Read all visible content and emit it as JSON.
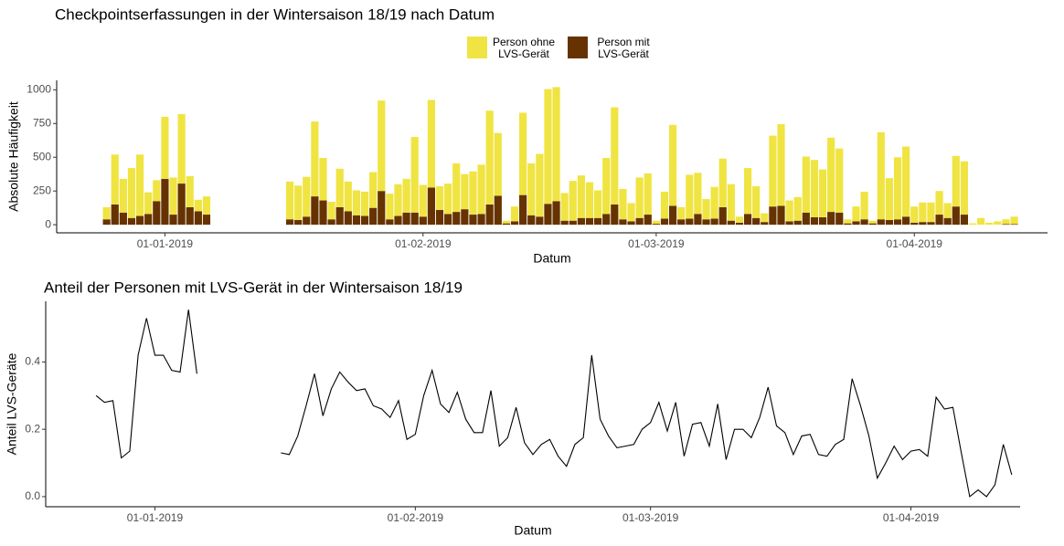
{
  "chart_data": [
    {
      "type": "bar",
      "stacked": true,
      "title": "Checkpointserfassungen in der Wintersaison 18/19 nach Datum",
      "xlabel": "Datum",
      "ylabel": "Absolute Häufigkeit",
      "legend": "top",
      "x": [
        "2018-12-25",
        "2018-12-26",
        "2018-12-27",
        "2018-12-28",
        "2018-12-29",
        "2018-12-30",
        "2018-12-31",
        "2019-01-01",
        "2019-01-02",
        "2019-01-03",
        "2019-01-04",
        "2019-01-05",
        "2019-01-06",
        "2019-01-07",
        "2019-01-08",
        "2019-01-09",
        "2019-01-10",
        "2019-01-11",
        "2019-01-12",
        "2019-01-13",
        "2019-01-14",
        "2019-01-15",
        "2019-01-16",
        "2019-01-17",
        "2019-01-18",
        "2019-01-19",
        "2019-01-20",
        "2019-01-21",
        "2019-01-22",
        "2019-01-23",
        "2019-01-24",
        "2019-01-25",
        "2019-01-26",
        "2019-01-27",
        "2019-01-28",
        "2019-01-29",
        "2019-01-30",
        "2019-01-31",
        "2019-02-01",
        "2019-02-02",
        "2019-02-03",
        "2019-02-04",
        "2019-02-05",
        "2019-02-06",
        "2019-02-07",
        "2019-02-08",
        "2019-02-09",
        "2019-02-10",
        "2019-02-11",
        "2019-02-12",
        "2019-02-13",
        "2019-02-14",
        "2019-02-15",
        "2019-02-16",
        "2019-02-17",
        "2019-02-18",
        "2019-02-19",
        "2019-02-20",
        "2019-02-21",
        "2019-02-22",
        "2019-02-23",
        "2019-02-24",
        "2019-02-25",
        "2019-02-26",
        "2019-02-27",
        "2019-02-28",
        "2019-03-01",
        "2019-03-02",
        "2019-03-03",
        "2019-03-04",
        "2019-03-05",
        "2019-03-06",
        "2019-03-07",
        "2019-03-08",
        "2019-03-09",
        "2019-03-10",
        "2019-03-11",
        "2019-03-12",
        "2019-03-13",
        "2019-03-14",
        "2019-03-15",
        "2019-03-16",
        "2019-03-17",
        "2019-03-18",
        "2019-03-19",
        "2019-03-20",
        "2019-03-21",
        "2019-03-22",
        "2019-03-23",
        "2019-03-24",
        "2019-03-25",
        "2019-03-26",
        "2019-03-27",
        "2019-03-28",
        "2019-03-29",
        "2019-03-30",
        "2019-03-31",
        "2019-04-01",
        "2019-04-02",
        "2019-04-03",
        "2019-04-04",
        "2019-04-05",
        "2019-04-06",
        "2019-04-07",
        "2019-04-08",
        "2019-04-09",
        "2019-04-10",
        "2019-04-11",
        "2019-04-12",
        "2019-04-13"
      ],
      "series": [
        {
          "name": "Person ohne LVS-Gerät",
          "color": "#f0e442",
          "values": [
            90,
            370,
            250,
            370,
            455,
            160,
            155,
            460,
            275,
            515,
            230,
            85,
            135,
            null,
            null,
            null,
            null,
            null,
            null,
            null,
            null,
            null,
            280,
            255,
            295,
            555,
            315,
            130,
            285,
            220,
            185,
            180,
            265,
            670,
            190,
            235,
            250,
            560,
            235,
            650,
            175,
            225,
            360,
            260,
            320,
            365,
            695,
            465,
            20,
            110,
            610,
            385,
            465,
            850,
            845,
            205,
            295,
            315,
            265,
            205,
            415,
            720,
            225,
            135,
            300,
            305,
            23,
            200,
            600,
            90,
            325,
            305,
            150,
            235,
            360,
            270,
            45,
            340,
            235,
            65,
            525,
            605,
            155,
            175,
            415,
            425,
            355,
            550,
            475,
            30,
            110,
            205,
            20,
            645,
            310,
            460,
            520,
            120,
            145,
            145,
            175,
            110,
            375,
            395,
            10,
            50,
            15,
            25,
            35,
            55
          ]
        },
        {
          "name": "Person mit LVS-Gerät",
          "color": "#663300",
          "values": [
            40,
            150,
            90,
            50,
            65,
            80,
            175,
            340,
            75,
            305,
            130,
            100,
            75,
            null,
            null,
            null,
            null,
            null,
            null,
            null,
            null,
            null,
            40,
            35,
            60,
            210,
            180,
            40,
            130,
            100,
            70,
            65,
            125,
            250,
            40,
            65,
            90,
            90,
            60,
            275,
            110,
            80,
            95,
            115,
            75,
            80,
            150,
            215,
            10,
            25,
            220,
            70,
            60,
            155,
            175,
            30,
            30,
            50,
            50,
            50,
            80,
            150,
            40,
            25,
            50,
            75,
            7,
            45,
            140,
            40,
            45,
            80,
            40,
            45,
            130,
            30,
            15,
            80,
            50,
            20,
            135,
            140,
            25,
            30,
            90,
            55,
            55,
            95,
            90,
            10,
            25,
            40,
            10,
            40,
            35,
            40,
            60,
            15,
            20,
            20,
            75,
            50,
            135,
            75,
            0,
            0,
            0,
            0,
            5,
            5
          ]
        }
      ],
      "xlim": [
        "2018-12-19",
        "2019-04-17"
      ],
      "xticks": [
        {
          "value": "2019-01-01",
          "label": "01-01-2019"
        },
        {
          "value": "2019-02-01",
          "label": "01-02-2019"
        },
        {
          "value": "2019-03-01",
          "label": "01-03-2019"
        },
        {
          "value": "2019-04-01",
          "label": "01-04-2019"
        }
      ],
      "ylim": [
        -60,
        1070
      ],
      "yticks": [
        0,
        250,
        500,
        750,
        1000
      ]
    },
    {
      "type": "line",
      "title": "Anteil der Personen mit LVS-Gerät in der Wintersaison 18/19",
      "xlabel": "Datum",
      "ylabel": "Anteil LVS-Geräte",
      "color": "#000000",
      "x": [
        "2018-12-25",
        "2018-12-26",
        "2018-12-27",
        "2018-12-28",
        "2018-12-29",
        "2018-12-30",
        "2018-12-31",
        "2019-01-01",
        "2019-01-02",
        "2019-01-03",
        "2019-01-04",
        "2019-01-05",
        "2019-01-06",
        "2019-01-07",
        "2019-01-08",
        "2019-01-09",
        "2019-01-10",
        "2019-01-11",
        "2019-01-12",
        "2019-01-13",
        "2019-01-14",
        "2019-01-15",
        "2019-01-16",
        "2019-01-17",
        "2019-01-18",
        "2019-01-19",
        "2019-01-20",
        "2019-01-21",
        "2019-01-22",
        "2019-01-23",
        "2019-01-24",
        "2019-01-25",
        "2019-01-26",
        "2019-01-27",
        "2019-01-28",
        "2019-01-29",
        "2019-01-30",
        "2019-01-31",
        "2019-02-01",
        "2019-02-02",
        "2019-02-03",
        "2019-02-04",
        "2019-02-05",
        "2019-02-06",
        "2019-02-07",
        "2019-02-08",
        "2019-02-09",
        "2019-02-10",
        "2019-02-11",
        "2019-02-12",
        "2019-02-13",
        "2019-02-14",
        "2019-02-15",
        "2019-02-16",
        "2019-02-17",
        "2019-02-18",
        "2019-02-19",
        "2019-02-20",
        "2019-02-21",
        "2019-02-22",
        "2019-02-23",
        "2019-02-24",
        "2019-02-25",
        "2019-02-26",
        "2019-02-27",
        "2019-02-28",
        "2019-03-01",
        "2019-03-02",
        "2019-03-03",
        "2019-03-04",
        "2019-03-05",
        "2019-03-06",
        "2019-03-07",
        "2019-03-08",
        "2019-03-09",
        "2019-03-10",
        "2019-03-11",
        "2019-03-12",
        "2019-03-13",
        "2019-03-14",
        "2019-03-15",
        "2019-03-16",
        "2019-03-17",
        "2019-03-18",
        "2019-03-19",
        "2019-03-20",
        "2019-03-21",
        "2019-03-22",
        "2019-03-23",
        "2019-03-24",
        "2019-03-25",
        "2019-03-26",
        "2019-03-27",
        "2019-03-28",
        "2019-03-29",
        "2019-03-30",
        "2019-03-31",
        "2019-04-01",
        "2019-04-02",
        "2019-04-03",
        "2019-04-04",
        "2019-04-05",
        "2019-04-06",
        "2019-04-07",
        "2019-04-08",
        "2019-04-09",
        "2019-04-10",
        "2019-04-11",
        "2019-04-12",
        "2019-04-13"
      ],
      "values": [
        0.3,
        0.28,
        0.285,
        0.115,
        0.135,
        0.42,
        0.53,
        0.42,
        0.42,
        0.375,
        0.37,
        0.555,
        0.365,
        null,
        null,
        null,
        null,
        null,
        null,
        null,
        null,
        null,
        0.13,
        0.125,
        0.18,
        0.27,
        0.365,
        0.24,
        0.32,
        0.37,
        0.34,
        0.315,
        0.32,
        0.27,
        0.26,
        0.235,
        0.285,
        0.17,
        0.185,
        0.3,
        0.375,
        0.275,
        0.25,
        0.31,
        0.23,
        0.19,
        0.19,
        0.315,
        0.15,
        0.175,
        0.265,
        0.16,
        0.125,
        0.155,
        0.17,
        0.12,
        0.09,
        0.155,
        0.175,
        0.42,
        0.23,
        0.18,
        0.145,
        0.15,
        0.155,
        0.2,
        0.22,
        0.28,
        0.195,
        0.28,
        0.12,
        0.215,
        0.22,
        0.15,
        0.275,
        0.11,
        0.2,
        0.2,
        0.175,
        0.235,
        0.325,
        0.21,
        0.19,
        0.125,
        0.18,
        0.185,
        0.125,
        0.12,
        0.155,
        0.17,
        0.35,
        0.27,
        0.18,
        0.055,
        0.1,
        0.15,
        0.11,
        0.135,
        0.14,
        0.12,
        0.295,
        0.26,
        0.265,
        0.13,
        0.0,
        0.02,
        0.0,
        0.035,
        0.155,
        0.065
      ],
      "xlim": [
        "2018-12-19",
        "2019-04-14"
      ],
      "xticks": [
        {
          "value": "2019-01-01",
          "label": "01-01-2019"
        },
        {
          "value": "2019-02-01",
          "label": "01-02-2019"
        },
        {
          "value": "2019-03-01",
          "label": "01-03-2019"
        },
        {
          "value": "2019-04-01",
          "label": "01-04-2019"
        }
      ],
      "ylim": [
        -0.03,
        0.58
      ],
      "yticks": [
        {
          "value": 0,
          "label": "0.0"
        },
        {
          "value": 0.2,
          "label": "0.2"
        },
        {
          "value": 0.4,
          "label": "0.4"
        }
      ]
    }
  ]
}
